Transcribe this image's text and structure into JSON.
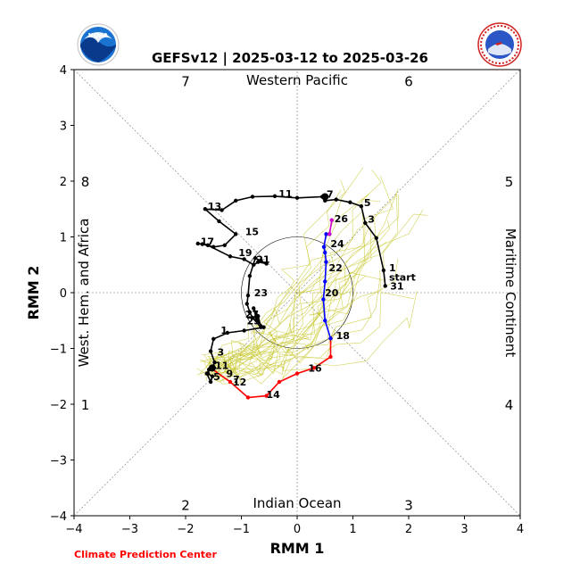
{
  "title": "GEFSv12 | 2025-03-12 to 2025-03-26",
  "credit": "Climate Prediction Center",
  "logos": {
    "left": {
      "icon": "noaa-logo-icon",
      "text": "NOAA"
    },
    "right": {
      "icon": "nws-logo-icon",
      "text": "NATIONAL WEATHER SERVICE"
    }
  },
  "region_labels": {
    "top": "Western Pacific",
    "bottom": "Indian Ocean",
    "left": "West. Hem. and Africa",
    "right": "Maritime Continent"
  },
  "phase_labels": [
    "1",
    "2",
    "3",
    "4",
    "5",
    "6",
    "7",
    "8"
  ],
  "chart_data": {
    "type": "line",
    "xlabel": "RMM 1",
    "ylabel": "RMM 2",
    "xlim": [
      -4,
      4
    ],
    "ylim": [
      -4,
      4
    ],
    "xticks": [
      -4,
      -3,
      -2,
      -1,
      0,
      1,
      2,
      3,
      4
    ],
    "yticks": [
      -4,
      -3,
      -2,
      -1,
      0,
      1,
      2,
      3,
      4
    ],
    "tick_labels": [
      "−4",
      "−3",
      "−2",
      "−1",
      "0",
      "1",
      "2",
      "3",
      "4"
    ],
    "unit_circle_radius": 1,
    "colors": {
      "observed": "#000000",
      "forecast_week1": "#0000ff",
      "forecast_week2": "#ff0000",
      "forecast_tail": "#cc00cc",
      "ensemble": "#c8c832"
    },
    "series": [
      {
        "color_key": "observed",
        "x": [
          1.58,
          1.55,
          1.42,
          1.22,
          1.15,
          0.95,
          0.7,
          0.5,
          0.45,
          0.0,
          -0.4,
          -0.8,
          -1.1,
          -1.35,
          -1.65,
          -1.4,
          -1.1,
          -1.3,
          -1.5,
          -1.7,
          -1.78,
          -1.6,
          -1.2,
          -0.95,
          -0.78,
          -0.65,
          -0.7,
          -0.55,
          -0.75,
          -0.85,
          -0.88,
          -0.9,
          -0.85,
          -0.8,
          -0.65,
          -0.7,
          -0.78,
          -0.72,
          -0.6,
          -0.95,
          -1.25,
          -1.5,
          -1.55,
          -1.48,
          -1.52,
          -1.58,
          -1.62,
          -1.55,
          -1.52,
          -1.6,
          -1.58
        ],
        "y": [
          0.12,
          0.4,
          0.98,
          1.25,
          1.55,
          1.62,
          1.67,
          1.65,
          1.72,
          1.7,
          1.73,
          1.72,
          1.65,
          1.48,
          1.5,
          1.28,
          1.05,
          0.85,
          0.82,
          0.87,
          0.88,
          0.85,
          0.65,
          0.6,
          0.5,
          0.58,
          0.55,
          0.52,
          0.62,
          0.3,
          -0.05,
          -0.2,
          -0.35,
          -0.45,
          -0.62,
          -0.42,
          -0.28,
          -0.5,
          -0.62,
          -0.68,
          -0.72,
          -0.83,
          -1.05,
          -1.25,
          -1.35,
          -1.38,
          -1.45,
          -1.6,
          -1.5,
          -1.45,
          -1.38
        ],
        "day_labels": [
          {
            "text": "start",
            "x": 1.6,
            "y": 0.28
          },
          {
            "text": "31",
            "x": 1.62,
            "y": 0.12
          },
          {
            "text": "1",
            "x": 1.6,
            "y": 0.45
          },
          {
            "text": "3",
            "x": 1.22,
            "y": 1.32
          },
          {
            "text": "5",
            "x": 1.15,
            "y": 1.62
          },
          {
            "text": "7",
            "x": 0.48,
            "y": 1.77
          },
          {
            "text": "11",
            "x": -0.38,
            "y": 1.78
          },
          {
            "text": "13",
            "x": -1.65,
            "y": 1.55
          },
          {
            "text": "15",
            "x": -0.98,
            "y": 1.1
          },
          {
            "text": "17",
            "x": -1.78,
            "y": 0.92
          },
          {
            "text": "19",
            "x": -1.1,
            "y": 0.72
          },
          {
            "text": "21",
            "x": -0.78,
            "y": 0.6
          },
          {
            "text": "23",
            "x": -0.82,
            "y": 0.0
          },
          {
            "text": "27",
            "x": -0.98,
            "y": -0.38
          },
          {
            "text": "25",
            "x": -0.95,
            "y": -0.5
          },
          {
            "text": "1",
            "x": -1.42,
            "y": -0.67
          },
          {
            "text": "3",
            "x": -1.48,
            "y": -1.06
          },
          {
            "text": "11",
            "x": -1.52,
            "y": -1.3
          },
          {
            "text": "9",
            "x": -1.32,
            "y": -1.45
          },
          {
            "text": "7",
            "x": -1.2,
            "y": -1.55
          },
          {
            "text": "5",
            "x": -1.55,
            "y": -1.5
          }
        ]
      },
      {
        "color_key": "forecast_week2",
        "x": [
          -1.55,
          -1.2,
          -0.88,
          -0.55,
          -0.32,
          0.0,
          0.3,
          0.6,
          0.6
        ],
        "y": [
          -1.35,
          -1.6,
          -1.88,
          -1.85,
          -1.6,
          -1.45,
          -1.35,
          -1.15,
          -0.82
        ],
        "day_labels": [
          {
            "text": "12",
            "x": -1.2,
            "y": -1.6
          },
          {
            "text": "14",
            "x": -0.6,
            "y": -1.82
          },
          {
            "text": "16",
            "x": 0.15,
            "y": -1.35
          }
        ]
      },
      {
        "color_key": "forecast_week1",
        "x": [
          0.6,
          0.5,
          0.47,
          0.5,
          0.52,
          0.5,
          0.48,
          0.52,
          0.58
        ],
        "y": [
          -0.82,
          -0.5,
          -0.12,
          0.2,
          0.55,
          0.72,
          0.82,
          1.05,
          1.05
        ],
        "day_labels": [
          {
            "text": "18",
            "x": 0.65,
            "y": -0.77
          },
          {
            "text": "20",
            "x": 0.45,
            "y": 0.0
          },
          {
            "text": "22",
            "x": 0.52,
            "y": 0.45
          },
          {
            "text": "24",
            "x": 0.55,
            "y": 0.88
          }
        ]
      },
      {
        "color_key": "forecast_tail",
        "x": [
          0.58,
          0.62
        ],
        "y": [
          1.05,
          1.3
        ],
        "day_labels": [
          {
            "text": "26",
            "x": 0.62,
            "y": 1.33
          }
        ]
      }
    ]
  }
}
